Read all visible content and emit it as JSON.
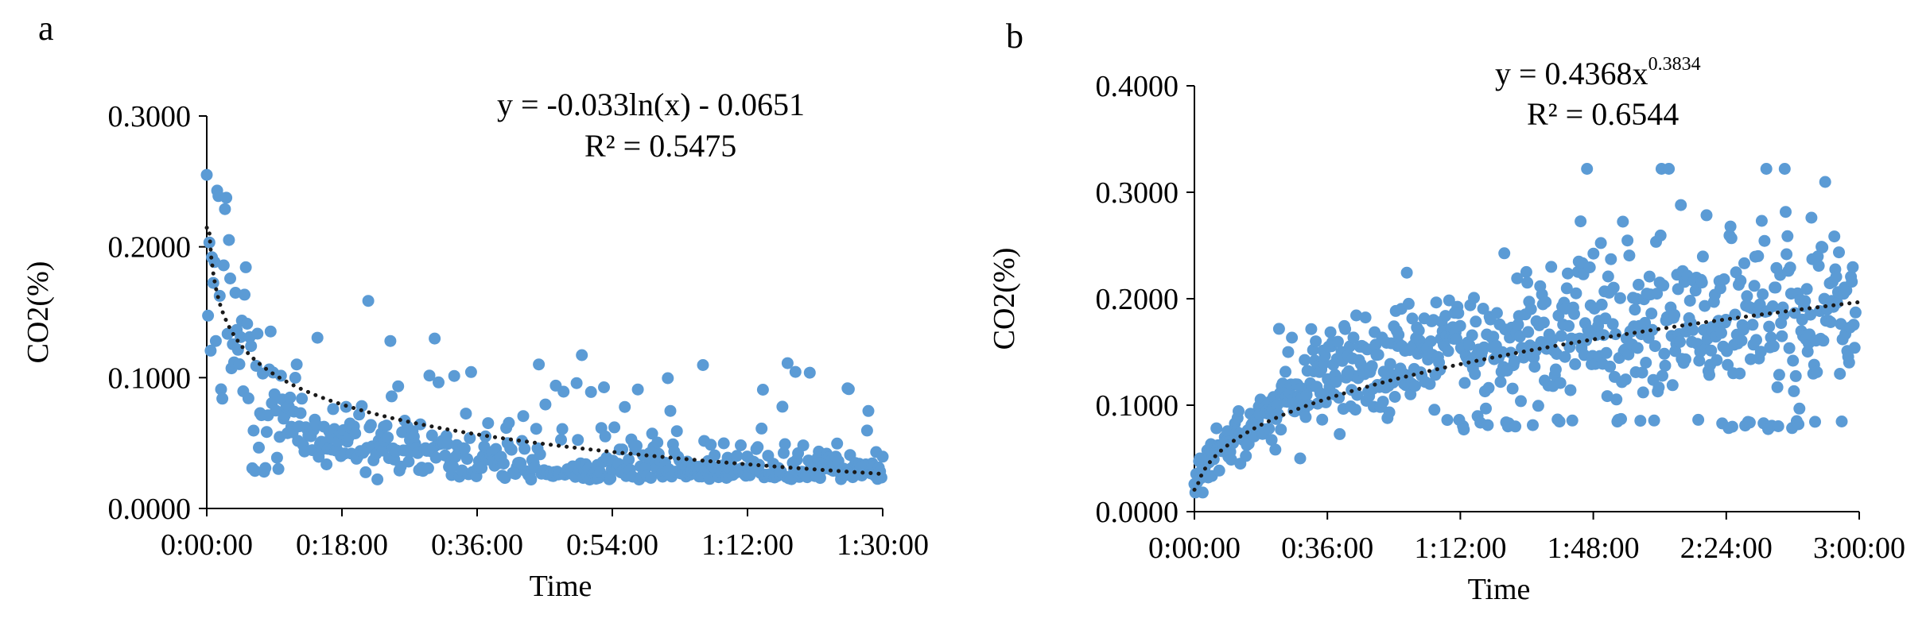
{
  "chart_data": [
    {
      "type": "scatter",
      "panel_label": "a",
      "equation": "y = -0.033ln(x) - 0.0651",
      "r_squared": "R² = 0.5475",
      "xlabel": "Time",
      "ylabel": "CO2(%)",
      "x_unit": "minutes",
      "xlim": [
        0,
        90
      ],
      "ylim": [
        0,
        0.3
      ],
      "x_tick_labels": [
        "0:00:00",
        "0:18:00",
        "0:36:00",
        "0:54:00",
        "1:12:00",
        "1:30:00"
      ],
      "y_tick_labels": [
        "0.0000",
        "0.1000",
        "0.2000",
        "0.3000"
      ],
      "trendline": {
        "model": "log",
        "a": -0.033,
        "b": -0.0651,
        "x_start": 0.1,
        "x_end": 90,
        "x_scale_note": "x evaluated in days-fraction of minutes"
      },
      "series": [
        {
          "name": "CO2",
          "color": "#5b9bd5",
          "x": [],
          "y": []
        }
      ]
    },
    {
      "type": "scatter",
      "panel_label": "b",
      "equation_base": "y = 0.4368x",
      "equation_exp": "0.3834",
      "r_squared": "R² = 0.6544",
      "xlabel": "Time",
      "ylabel": "CO2(%)",
      "x_unit": "minutes",
      "xlim": [
        0,
        180
      ],
      "ylim": [
        0,
        0.4
      ],
      "x_tick_labels": [
        "0:00:00",
        "0:36:00",
        "1:12:00",
        "1:48:00",
        "2:24:00",
        "3:00:00"
      ],
      "y_tick_labels": [
        "0.0000",
        "0.1000",
        "0.2000",
        "0.3000",
        "0.4000"
      ],
      "trendline": {
        "model": "power",
        "a": 0.4368,
        "b": 0.3834
      },
      "series": [
        {
          "name": "CO2",
          "color": "#5b9bd5",
          "x": [],
          "y": []
        }
      ]
    }
  ]
}
